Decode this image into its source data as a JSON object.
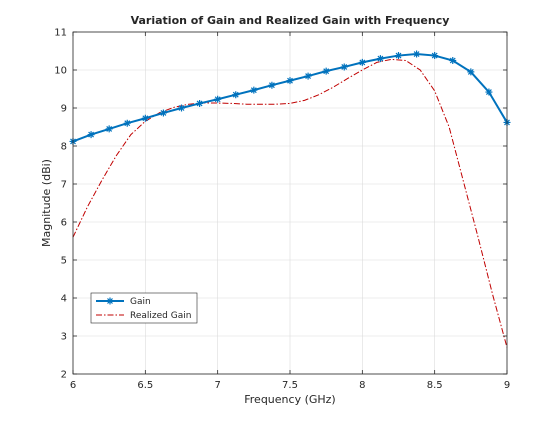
{
  "chart_data": {
    "type": "line",
    "title": "Variation of Gain and Realized Gain with Frequency",
    "xlabel": "Frequency (GHz)",
    "ylabel": "Magnitude (dBi)",
    "xlim": [
      6,
      9
    ],
    "ylim": [
      2,
      11
    ],
    "xticks": [
      6,
      6.5,
      7,
      7.5,
      8,
      8.5,
      9
    ],
    "yticks": [
      2,
      3,
      4,
      5,
      6,
      7,
      8,
      9,
      10,
      11
    ],
    "xtick_labels": [
      "6",
      "6.5",
      "7",
      "7.5",
      "8",
      "8.5",
      "9"
    ],
    "ytick_labels": [
      "2",
      "3",
      "4",
      "5",
      "6",
      "7",
      "8",
      "9",
      "10",
      "11"
    ],
    "grid": true,
    "legend_position": "bottom-left",
    "series": [
      {
        "name": "Gain",
        "color": "#0072BD",
        "style": "solid-star-markers",
        "x": [
          6.0,
          6.125,
          6.25,
          6.375,
          6.5,
          6.625,
          6.75,
          6.875,
          7.0,
          7.125,
          7.25,
          7.375,
          7.5,
          7.625,
          7.75,
          7.875,
          8.0,
          8.125,
          8.25,
          8.375,
          8.5,
          8.625,
          8.75,
          8.875,
          9.0
        ],
        "values": [
          8.12,
          8.3,
          8.45,
          8.6,
          8.73,
          8.87,
          9.0,
          9.12,
          9.23,
          9.35,
          9.47,
          9.6,
          9.72,
          9.84,
          9.97,
          10.08,
          10.2,
          10.3,
          10.38,
          10.42,
          10.38,
          10.25,
          9.95,
          9.42,
          8.62
        ]
      },
      {
        "name": "Realized Gain",
        "color": "#C00000",
        "style": "dash-dot",
        "x": [
          6.0,
          6.1,
          6.2,
          6.3,
          6.4,
          6.5,
          6.6,
          6.7,
          6.8,
          6.9,
          7.0,
          7.1,
          7.2,
          7.3,
          7.4,
          7.5,
          7.6,
          7.7,
          7.8,
          7.9,
          8.0,
          8.1,
          8.2,
          8.3,
          8.4,
          8.5,
          8.6,
          8.7,
          8.8,
          8.9,
          9.0
        ],
        "values": [
          5.6,
          6.4,
          7.1,
          7.75,
          8.3,
          8.65,
          8.88,
          9.02,
          9.1,
          9.13,
          9.13,
          9.12,
          9.1,
          9.1,
          9.1,
          9.12,
          9.2,
          9.35,
          9.55,
          9.78,
          10.0,
          10.2,
          10.28,
          10.25,
          10.0,
          9.45,
          8.5,
          7.05,
          5.6,
          4.1,
          2.7
        ]
      }
    ]
  }
}
